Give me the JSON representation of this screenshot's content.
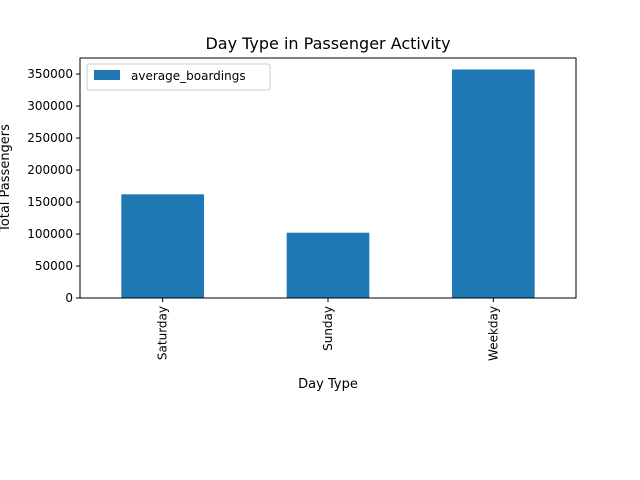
{
  "chart_data": {
    "type": "bar",
    "title": "Day Type in Passenger Activity",
    "xlabel": "Day Type",
    "ylabel": "Total Passengers",
    "categories": [
      "Saturday",
      "Sunday",
      "Weekday"
    ],
    "series": [
      {
        "name": "average_boardings",
        "values": [
          162000,
          102000,
          357000
        ],
        "color": "#1f77b4"
      }
    ],
    "ylim": [
      0,
      375000
    ],
    "yticks": [
      0,
      50000,
      100000,
      150000,
      200000,
      250000,
      300000,
      350000
    ],
    "ytick_labels": [
      "0",
      "50000",
      "100000",
      "150000",
      "200000",
      "250000",
      "300000",
      "350000"
    ],
    "grid": false,
    "legend": {
      "position": "top-left"
    }
  }
}
